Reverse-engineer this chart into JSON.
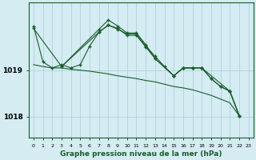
{
  "background_color": "#d4ecf2",
  "grid_color": "#a8cdd8",
  "line_color": "#1a5c2a",
  "title": "Graphe pression niveau de la mer (hPa)",
  "x_ticks": [
    0,
    1,
    2,
    3,
    4,
    5,
    6,
    7,
    8,
    9,
    10,
    11,
    12,
    13,
    14,
    15,
    16,
    17,
    18,
    19,
    20,
    21,
    22,
    23
  ],
  "ylim": [
    1017.55,
    1020.45
  ],
  "yticks": [
    1018,
    1019
  ],
  "series": {
    "s1_x": [
      0,
      1,
      2,
      3,
      4,
      5,
      6,
      7,
      8,
      9,
      10,
      11,
      12,
      13,
      14,
      15,
      16,
      17,
      18,
      19,
      20,
      21,
      22
    ],
    "s1_y": [
      1019.95,
      1019.18,
      1019.05,
      1019.12,
      1019.05,
      1019.12,
      1019.52,
      1019.82,
      1019.97,
      1019.88,
      1019.78,
      1019.78,
      1019.52,
      1019.3,
      1019.08,
      1018.88,
      1019.05,
      1019.05,
      1019.05,
      1018.82,
      1018.65,
      1018.55,
      1018.02
    ],
    "s2_x": [
      0,
      1,
      2,
      3,
      4,
      5,
      6,
      7,
      8,
      9,
      10,
      11,
      12,
      13,
      14,
      15,
      16,
      17,
      18,
      19,
      20,
      21,
      22
    ],
    "s2_y": [
      1019.12,
      1019.08,
      1019.05,
      1019.05,
      1019.02,
      1019.0,
      1018.98,
      1018.95,
      1018.92,
      1018.88,
      1018.85,
      1018.82,
      1018.78,
      1018.75,
      1018.7,
      1018.65,
      1018.62,
      1018.58,
      1018.52,
      1018.46,
      1018.38,
      1018.3,
      1018.02
    ],
    "s3_x": [
      3,
      7,
      8,
      9,
      10,
      11,
      12,
      13,
      15,
      16,
      17,
      18,
      21,
      22
    ],
    "s3_y": [
      1019.08,
      1019.82,
      1019.97,
      1019.9,
      1019.75,
      1019.75,
      1019.5,
      1019.25,
      1018.88,
      1019.05,
      1019.05,
      1019.05,
      1018.55,
      1018.02
    ],
    "s4_x": [
      0,
      3,
      7,
      8,
      9,
      10,
      11,
      12,
      13,
      15,
      16,
      17,
      18,
      19,
      20,
      21,
      22
    ],
    "s4_y": [
      1019.9,
      1019.08,
      1019.88,
      1020.08,
      1019.95,
      1019.8,
      1019.8,
      1019.55,
      1019.25,
      1018.88,
      1019.05,
      1019.05,
      1019.05,
      1018.82,
      1018.65,
      1018.55,
      1018.02
    ]
  }
}
